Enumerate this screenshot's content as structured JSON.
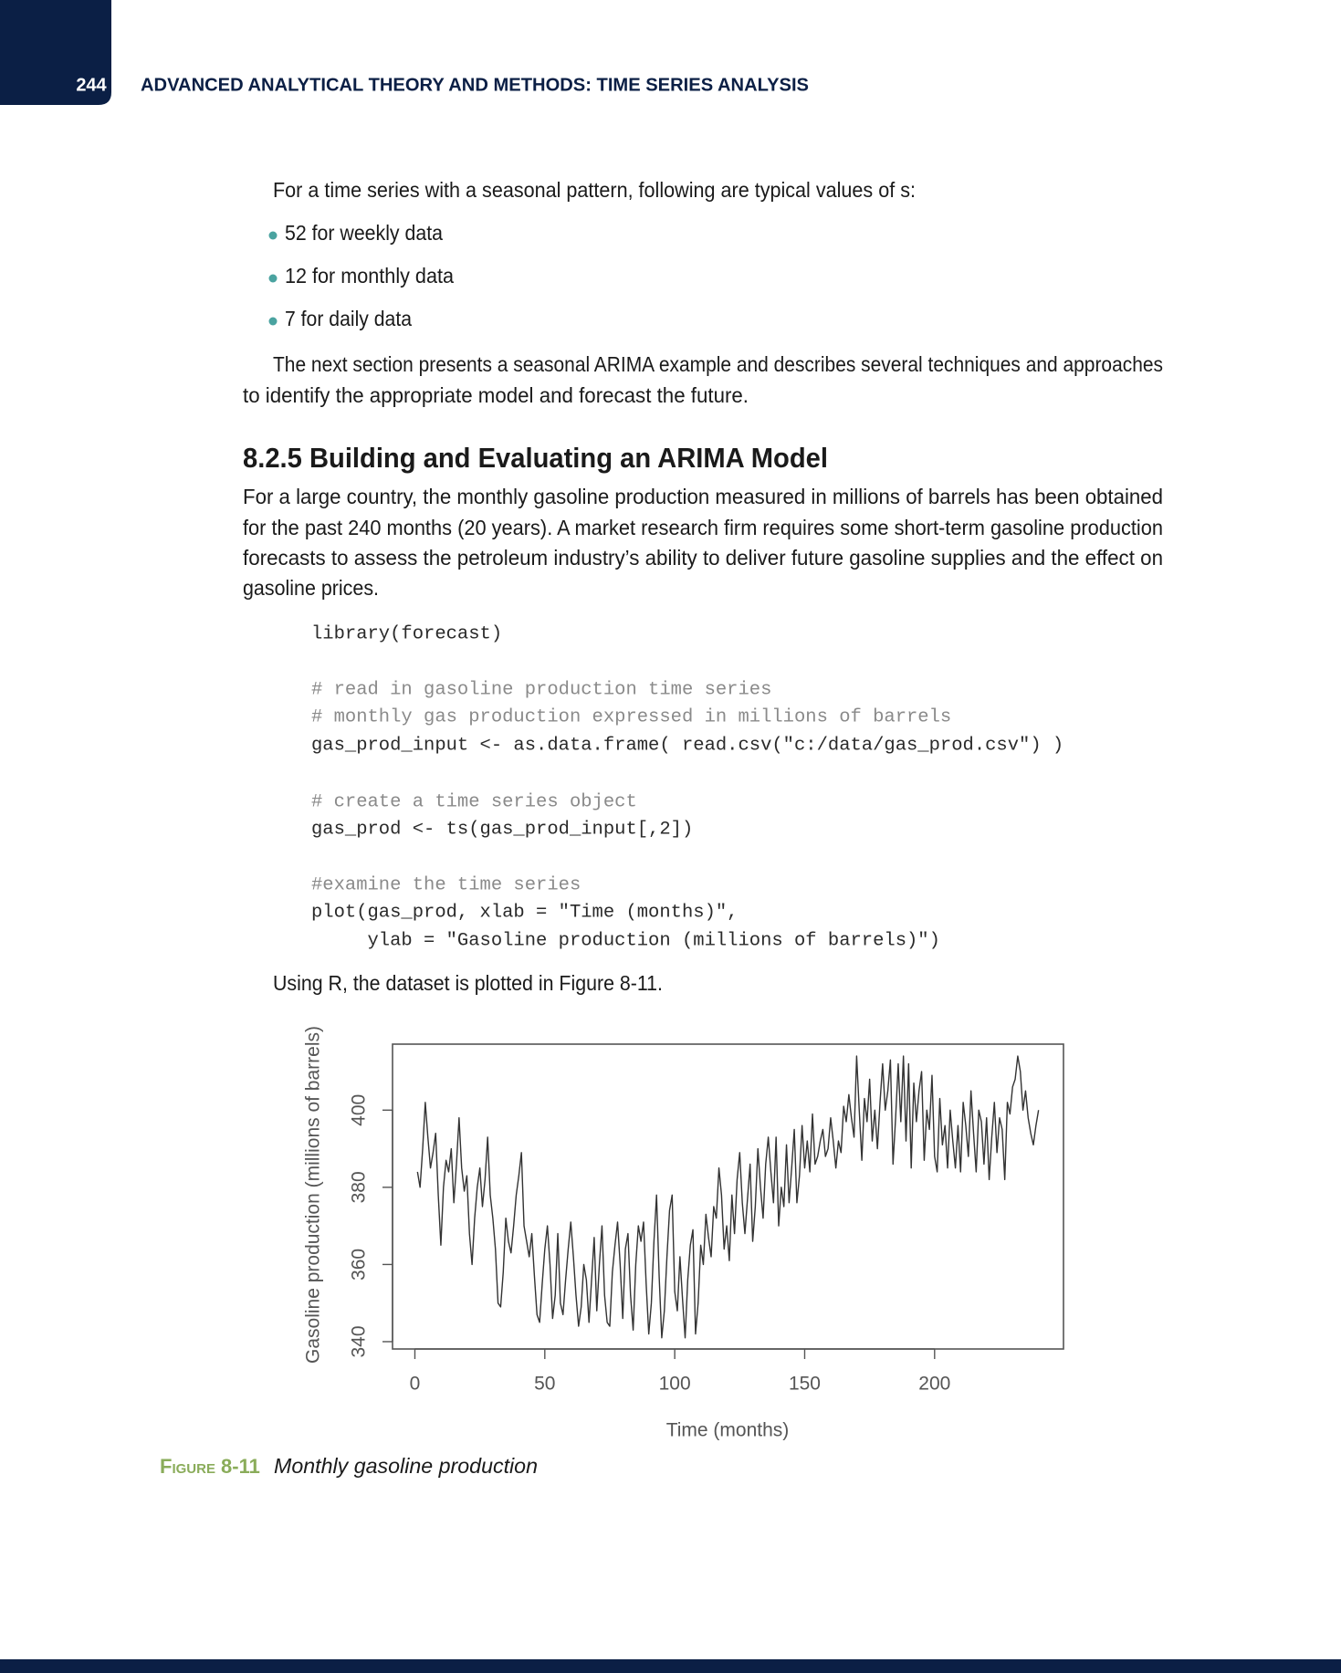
{
  "header": {
    "page_number": "244",
    "title": "ADVANCED ANALYTICAL THEORY AND METHODS: TIME SERIES ANALYSIS"
  },
  "body": {
    "intro": "For a time series with a seasonal pattern, following are typical values of s:",
    "bullets": [
      "52 for weekly data",
      "12 for monthly data",
      "7 for daily data"
    ],
    "paragraph_1": [
      "The next section presents a seasonal ARIMA example and describes several techniques and approaches",
      "to identify the appropriate model and forecast the future."
    ],
    "heading": "8.2.5 Building and Evaluating an ARIMA Model",
    "paragraph_2": [
      "For a large country, the monthly gasoline production measured in millions of barrels has been obtained",
      "for the past 240 months (20 years). A market research firm requires some short-term gasoline production",
      "forecasts to assess the petroleum industry’s ability to deliver future gasoline supplies and the effect on",
      "gasoline prices."
    ],
    "code": [
      "library(forecast)",
      "# read in gasoline production time series",
      "# monthly gas production expressed in millions of barrels",
      "gas_prod_input <- as.data.frame( read.csv(\"c:/data/gas_prod.csv\") )",
      "# create a time series object",
      "gas_prod <- ts(gas_prod_input[,2])",
      "#examine the time series",
      "plot(gas_prod, xlab = \"Time (months)\",",
      "     ylab = \"Gasoline production (millions of barrels)\")"
    ],
    "closing": "Using R, the dataset is plotted in Figure 8-11."
  },
  "chart_data": {
    "type": "line",
    "xlabel": "Time (months)",
    "ylabel": "Gasoline production (millions of barrels)",
    "color": "#333333",
    "x": [
      1,
      2,
      3,
      4,
      5,
      6,
      7,
      8,
      9,
      10,
      11,
      12,
      13,
      14,
      15,
      16,
      17,
      18,
      19,
      20,
      21,
      22,
      23,
      24,
      25,
      26,
      27,
      28,
      29,
      30,
      31,
      32,
      33,
      34,
      35,
      36,
      37,
      38,
      39,
      40,
      41,
      42,
      43,
      44,
      45,
      46,
      47,
      48,
      49,
      50,
      51,
      52,
      53,
      54,
      55,
      56,
      57,
      58,
      59,
      60,
      61,
      62,
      63,
      64,
      65,
      66,
      67,
      68,
      69,
      70,
      71,
      72,
      73,
      74,
      75,
      76,
      77,
      78,
      79,
      80,
      81,
      82,
      83,
      84,
      85,
      86,
      87,
      88,
      89,
      90,
      91,
      92,
      93,
      94,
      95,
      96,
      97,
      98,
      99,
      100,
      101,
      102,
      103,
      104,
      105,
      106,
      107,
      108,
      109,
      110,
      111,
      112,
      113,
      114,
      115,
      116,
      117,
      118,
      119,
      120,
      121,
      122,
      123,
      124,
      125,
      126,
      127,
      128,
      129,
      130,
      131,
      132,
      133,
      134,
      135,
      136,
      137,
      138,
      139,
      140,
      141,
      142,
      143,
      144,
      145,
      146,
      147,
      148,
      149,
      150,
      151,
      152,
      153,
      154,
      155,
      156,
      157,
      158,
      159,
      160,
      161,
      162,
      163,
      164,
      165,
      166,
      167,
      168,
      169,
      170,
      171,
      172,
      173,
      174,
      175,
      176,
      177,
      178,
      179,
      180,
      181,
      182,
      183,
      184,
      185,
      186,
      187,
      188,
      189,
      190,
      191,
      192,
      193,
      194,
      195,
      196,
      197,
      198,
      199,
      200,
      201,
      202,
      203,
      204,
      205,
      206,
      207,
      208,
      209,
      210,
      211,
      212,
      213,
      214,
      215,
      216,
      217,
      218,
      219,
      220,
      221,
      222,
      223,
      224,
      225,
      226,
      227,
      228,
      229,
      230,
      231,
      232,
      233,
      234,
      235,
      236,
      237,
      238,
      239,
      240
    ],
    "values": [
      384,
      380,
      390,
      402,
      393,
      385,
      389,
      394,
      378,
      365,
      380,
      387,
      384,
      390,
      376,
      386,
      398,
      385,
      379,
      383,
      368,
      360,
      372,
      380,
      385,
      375,
      382,
      393,
      378,
      372,
      364,
      350,
      349,
      358,
      372,
      366,
      363,
      370,
      378,
      383,
      389,
      370,
      366,
      362,
      368,
      357,
      347,
      345,
      355,
      364,
      370,
      360,
      346,
      352,
      368,
      350,
      347,
      356,
      364,
      371,
      362,
      352,
      344,
      349,
      360,
      356,
      345,
      356,
      367,
      348,
      360,
      370,
      352,
      345,
      344,
      358,
      365,
      371,
      360,
      346,
      364,
      368,
      352,
      343,
      360,
      370,
      366,
      371,
      355,
      342,
      350,
      366,
      378,
      357,
      341,
      348,
      362,
      374,
      378,
      353,
      348,
      362,
      351,
      341,
      356,
      365,
      369,
      342,
      350,
      365,
      360,
      373,
      367,
      362,
      375,
      372,
      385,
      378,
      364,
      370,
      361,
      378,
      368,
      382,
      389,
      376,
      368,
      377,
      386,
      366,
      375,
      390,
      380,
      372,
      386,
      393,
      384,
      376,
      393,
      370,
      380,
      375,
      391,
      376,
      385,
      395,
      376,
      383,
      396,
      385,
      392,
      384,
      399,
      386,
      388,
      392,
      395,
      388,
      390,
      398,
      392,
      385,
      392,
      389,
      401,
      397,
      404,
      398,
      393,
      414,
      400,
      387,
      403,
      397,
      408,
      392,
      400,
      390,
      402,
      412,
      400,
      405,
      413,
      386,
      398,
      412,
      397,
      414,
      392,
      412,
      385,
      407,
      397,
      405,
      410,
      387,
      400,
      395,
      409,
      388,
      384,
      403,
      391,
      396,
      385,
      400,
      392,
      385,
      396,
      384,
      402,
      396,
      388,
      405,
      394,
      384,
      400,
      397,
      386,
      398,
      382,
      393,
      402,
      389,
      398,
      395,
      382,
      402,
      399,
      406,
      408,
      414,
      410,
      400,
      405,
      398,
      394,
      391,
      396,
      400
    ],
    "xlim": [
      -8.6,
      249.6
    ],
    "ylim": [
      338.1,
      417.1
    ],
    "xticks": [
      0,
      50,
      100,
      150,
      200
    ],
    "yticks": [
      340,
      360,
      380,
      400
    ]
  },
  "caption": {
    "label": "Figure 8-11",
    "text": "Monthly gasoline production"
  }
}
